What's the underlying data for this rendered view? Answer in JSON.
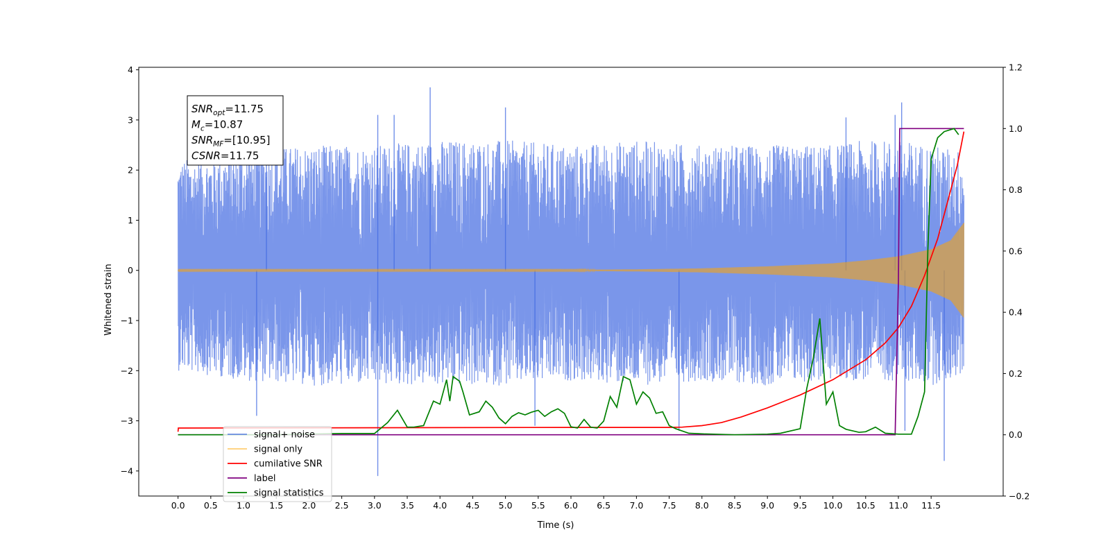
{
  "chart_data": {
    "type": "line",
    "xlabel": "Time (s)",
    "ylabel": "Whitened strain",
    "xlim": [
      -0.6,
      12.6
    ],
    "ylim_left": [
      -4.5,
      4.05
    ],
    "ylim_right": [
      -0.2,
      1.2
    ],
    "x_ticks": [
      "0.0",
      "0.5",
      "1.0",
      "1.5",
      "2.0",
      "2.5",
      "3.0",
      "3.5",
      "4.0",
      "4.5",
      "5.0",
      "5.5",
      "6.0",
      "6.5",
      "7.0",
      "7.5",
      "8.0",
      "8.5",
      "9.0",
      "9.5",
      "10.0",
      "10.5",
      "11.0",
      "11.5"
    ],
    "y_ticks_left": [
      "4",
      "3",
      "2",
      "1",
      "0",
      "−1",
      "−2",
      "−3",
      "−4"
    ],
    "y_ticks_right": [
      "1.2",
      "1.0",
      "0.8",
      "0.6",
      "0.4",
      "0.2",
      "0.0",
      "−0.2"
    ],
    "annotation": {
      "lines": [
        {
          "sym": "SNR",
          "sub": "opt",
          "val": "=11.75"
        },
        {
          "sym": "M",
          "sub": "c",
          "val": "=10.87"
        },
        {
          "sym": "SNR",
          "sub": "MF",
          "val": "=[10.95]"
        },
        {
          "sym": "CSNR",
          "sub": "",
          "val": "=11.75"
        }
      ]
    },
    "series": [
      {
        "name": "signal+ noise",
        "color": "#4169e1",
        "axis": "left",
        "x": [
          0.0,
          1.0,
          2.0,
          3.0,
          4.0,
          5.0,
          6.0,
          7.0,
          8.0,
          9.0,
          10.0,
          10.5,
          11.0,
          11.5,
          12.0
        ],
        "envelope_upper": [
          2.2,
          2.4,
          2.5,
          2.5,
          2.6,
          2.6,
          2.5,
          2.6,
          2.5,
          2.5,
          2.5,
          2.6,
          2.6,
          2.5,
          2.4
        ],
        "envelope_lower": [
          -2.0,
          -2.2,
          -2.3,
          -2.3,
          -2.3,
          -2.3,
          -2.2,
          -2.3,
          -2.2,
          -2.3,
          -2.2,
          -2.2,
          -2.2,
          -2.3,
          -2.1
        ],
        "spikes": [
          [
            1.2,
            -2.9
          ],
          [
            1.35,
            2.9
          ],
          [
            3.05,
            3.1
          ],
          [
            3.05,
            -4.1
          ],
          [
            3.3,
            3.1
          ],
          [
            3.85,
            3.65
          ],
          [
            5.0,
            3.25
          ],
          [
            5.45,
            -3.1
          ],
          [
            7.65,
            -3.2
          ],
          [
            10.2,
            3.05
          ],
          [
            11.05,
            3.35
          ],
          [
            11.7,
            -3.8
          ],
          [
            11.1,
            -3.2
          ],
          [
            10.95,
            3.1
          ]
        ]
      },
      {
        "name": "signal only",
        "color": "#ffa500",
        "axis": "left",
        "x": [
          0.0,
          6.0,
          7.0,
          8.0,
          9.0,
          10.0,
          10.5,
          11.0,
          11.5,
          11.8,
          12.0
        ],
        "amplitude": [
          0.01,
          0.01,
          0.02,
          0.04,
          0.08,
          0.14,
          0.2,
          0.28,
          0.42,
          0.6,
          0.95
        ]
      },
      {
        "name": "cumilative SNR",
        "color": "#ff0000",
        "axis": "right",
        "x": [
          0.0,
          0.005,
          6.0,
          7.0,
          7.5,
          7.7,
          8.0,
          8.3,
          8.6,
          9.0,
          9.5,
          10.0,
          10.5,
          10.8,
          11.0,
          11.2,
          11.4,
          11.6,
          11.8,
          11.9,
          12.0
        ],
        "y": [
          0.01,
          0.022,
          0.024,
          0.024,
          0.024,
          0.025,
          0.03,
          0.04,
          0.058,
          0.088,
          0.13,
          0.18,
          0.245,
          0.3,
          0.35,
          0.42,
          0.52,
          0.64,
          0.8,
          0.88,
          0.99
        ]
      },
      {
        "name": "label",
        "color": "#800080",
        "axis": "right",
        "x": [
          0.0,
          10.95,
          11.0,
          11.02,
          12.0
        ],
        "y": [
          0.0,
          0.0,
          0.5,
          1.0,
          1.0
        ]
      },
      {
        "name": "signal statistics",
        "color": "#008000",
        "axis": "right",
        "x": [
          0.0,
          1.5,
          2.5,
          3.0,
          3.2,
          3.35,
          3.5,
          3.6,
          3.75,
          3.9,
          4.0,
          4.1,
          4.15,
          4.2,
          4.3,
          4.35,
          4.45,
          4.6,
          4.7,
          4.8,
          4.9,
          5.0,
          5.1,
          5.2,
          5.3,
          5.4,
          5.5,
          5.6,
          5.7,
          5.8,
          5.9,
          6.0,
          6.1,
          6.2,
          6.3,
          6.4,
          6.5,
          6.6,
          6.7,
          6.8,
          6.9,
          7.0,
          7.1,
          7.2,
          7.3,
          7.4,
          7.5,
          7.6,
          7.8,
          8.0,
          8.5,
          9.0,
          9.2,
          9.5,
          9.6,
          9.7,
          9.8,
          9.9,
          10.0,
          10.1,
          10.2,
          10.4,
          10.5,
          10.65,
          10.8,
          11.0,
          11.2,
          11.3,
          11.4,
          11.45,
          11.5,
          11.6,
          11.7,
          11.85,
          11.92
        ],
        "y": [
          0.0,
          0.0,
          0.004,
          0.004,
          0.04,
          0.08,
          0.025,
          0.025,
          0.03,
          0.11,
          0.1,
          0.18,
          0.11,
          0.19,
          0.175,
          0.14,
          0.065,
          0.075,
          0.11,
          0.09,
          0.055,
          0.036,
          0.06,
          0.072,
          0.065,
          0.074,
          0.08,
          0.06,
          0.075,
          0.085,
          0.07,
          0.026,
          0.022,
          0.05,
          0.025,
          0.022,
          0.045,
          0.125,
          0.09,
          0.19,
          0.18,
          0.1,
          0.14,
          0.12,
          0.07,
          0.075,
          0.03,
          0.02,
          0.005,
          0.003,
          0.0,
          0.002,
          0.005,
          0.02,
          0.15,
          0.25,
          0.38,
          0.1,
          0.14,
          0.03,
          0.018,
          0.008,
          0.01,
          0.025,
          0.005,
          0.002,
          0.002,
          0.06,
          0.14,
          0.6,
          0.9,
          0.97,
          0.99,
          1.0,
          0.98
        ]
      }
    ],
    "legend_location": "lower-left"
  }
}
